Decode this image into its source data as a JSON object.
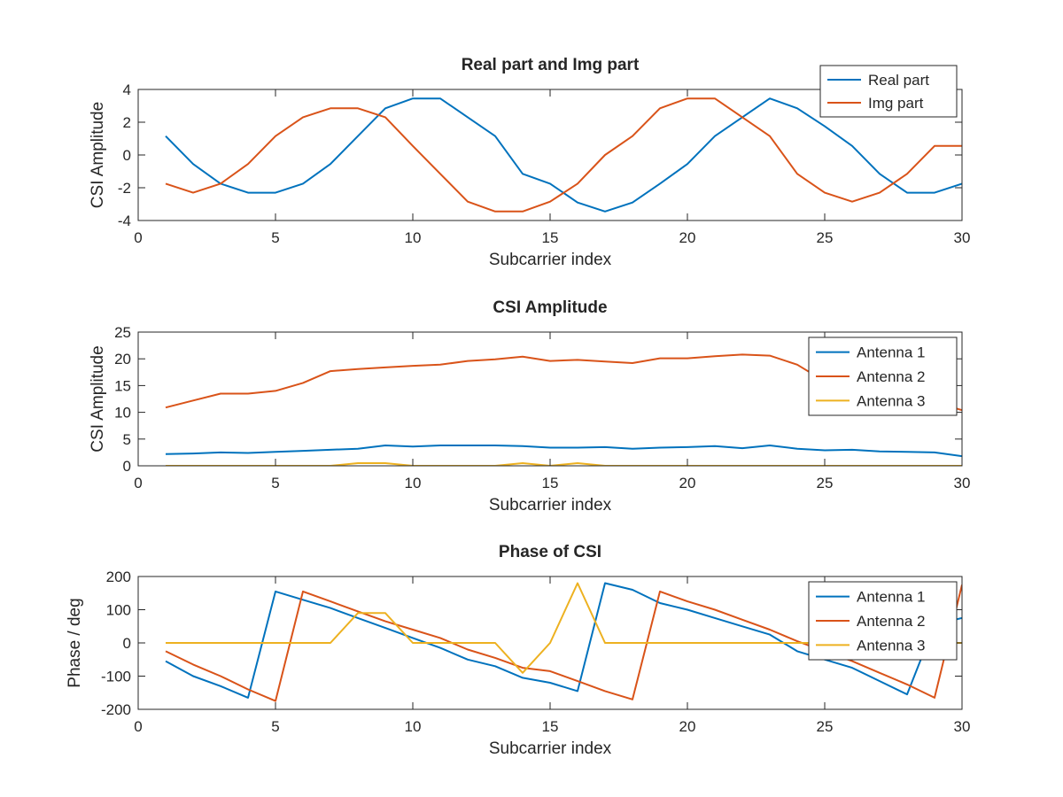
{
  "chart_data": [
    {
      "type": "line",
      "title": "Real part and Img part",
      "xlabel": "Subcarrier index",
      "ylabel": "CSI Amplitude",
      "xlim": [
        0,
        30
      ],
      "ylim": [
        -4,
        4
      ],
      "xticks": [
        0,
        5,
        10,
        15,
        20,
        25,
        30
      ],
      "yticks": [
        -4,
        -2,
        0,
        2,
        4
      ],
      "legend_position": "top-right",
      "x": [
        1,
        2,
        3,
        4,
        5,
        6,
        7,
        8,
        9,
        10,
        11,
        12,
        13,
        14,
        15,
        16,
        17,
        18,
        19,
        20,
        21,
        22,
        23,
        24,
        25,
        26,
        27,
        28,
        29,
        30
      ],
      "series": [
        {
          "name": "Real part",
          "color": "#0072BD",
          "values": [
            1.15,
            -0.55,
            -1.75,
            -2.3,
            -2.3,
            -1.75,
            -0.55,
            1.15,
            2.85,
            3.45,
            3.45,
            2.3,
            1.15,
            -1.15,
            -1.75,
            -2.9,
            -3.45,
            -2.9,
            -1.75,
            -0.55,
            1.15,
            2.3,
            3.45,
            2.85,
            1.75,
            0.55,
            -1.15,
            -2.3,
            -2.3,
            -1.75
          ]
        },
        {
          "name": "Img part",
          "color": "#D95319",
          "values": [
            -1.75,
            -2.3,
            -1.75,
            -0.55,
            1.15,
            2.3,
            2.85,
            2.85,
            2.3,
            0.55,
            -1.15,
            -2.85,
            -3.45,
            -3.45,
            -2.85,
            -1.75,
            0,
            1.15,
            2.85,
            3.45,
            3.45,
            2.3,
            1.15,
            -1.15,
            -2.3,
            -2.85,
            -2.3,
            -1.15,
            0.55,
            0.55
          ]
        }
      ]
    },
    {
      "type": "line",
      "title": "CSI Amplitude",
      "xlabel": "Subcarrier index",
      "ylabel": "CSI Amplitude",
      "xlim": [
        0,
        30
      ],
      "ylim": [
        0,
        25
      ],
      "xticks": [
        0,
        5,
        10,
        15,
        20,
        25,
        30
      ],
      "yticks": [
        0,
        5,
        10,
        15,
        20,
        25
      ],
      "legend_position": "top-right",
      "x": [
        1,
        2,
        3,
        4,
        5,
        6,
        7,
        8,
        9,
        10,
        11,
        12,
        13,
        14,
        15,
        16,
        17,
        18,
        19,
        20,
        21,
        22,
        23,
        24,
        25,
        26,
        27,
        28,
        29,
        30
      ],
      "series": [
        {
          "name": "Antenna 1",
          "color": "#0072BD",
          "values": [
            2.2,
            2.3,
            2.5,
            2.4,
            2.6,
            2.8,
            3.0,
            3.2,
            3.8,
            3.6,
            3.8,
            3.8,
            3.8,
            3.7,
            3.4,
            3.4,
            3.5,
            3.2,
            3.4,
            3.5,
            3.7,
            3.3,
            3.8,
            3.2,
            2.9,
            3.0,
            2.7,
            2.6,
            2.5,
            1.8
          ]
        },
        {
          "name": "Antenna 2",
          "color": "#D95319",
          "values": [
            10.9,
            12.2,
            13.5,
            13.5,
            14.0,
            15.5,
            17.7,
            18.1,
            18.4,
            18.7,
            18.9,
            19.6,
            19.9,
            20.4,
            19.6,
            19.8,
            19.5,
            19.2,
            20.1,
            20.1,
            20.5,
            20.8,
            20.6,
            18.9,
            15.8,
            15.6,
            14.2,
            12.8,
            11.9,
            10.4
          ]
        },
        {
          "name": "Antenna 3",
          "color": "#EDB120",
          "values": [
            0,
            0,
            0,
            0,
            0,
            0,
            0,
            0.5,
            0.5,
            0,
            0,
            0,
            0,
            0.5,
            0,
            0.5,
            0,
            0,
            0,
            0,
            0,
            0,
            0,
            0,
            0,
            0,
            0,
            0,
            0,
            0
          ]
        }
      ]
    },
    {
      "type": "line",
      "title": "Phase of CSI",
      "xlabel": "Subcarrier index",
      "ylabel": "Phase / deg",
      "xlim": [
        0,
        30
      ],
      "ylim": [
        -200,
        200
      ],
      "xticks": [
        0,
        5,
        10,
        15,
        20,
        25,
        30
      ],
      "yticks": [
        -200,
        -100,
        0,
        100,
        200
      ],
      "legend_position": "top-right",
      "x": [
        1,
        2,
        3,
        4,
        5,
        6,
        7,
        8,
        9,
        10,
        11,
        12,
        13,
        14,
        15,
        16,
        17,
        18,
        19,
        20,
        21,
        22,
        23,
        24,
        25,
        26,
        27,
        28,
        29,
        30
      ],
      "series": [
        {
          "name": "Antenna 1",
          "color": "#0072BD",
          "points": [
            [
              1,
              -55
            ],
            [
              2,
              -100
            ],
            [
              3,
              -130
            ],
            [
              4,
              -165
            ],
            [
              5,
              155
            ],
            [
              6,
              130
            ],
            [
              7,
              105
            ],
            [
              8,
              75
            ],
            [
              9,
              45
            ],
            [
              10,
              15
            ],
            [
              11,
              -15
            ],
            [
              12,
              -50
            ],
            [
              13,
              -70
            ],
            [
              14,
              -105
            ],
            [
              15,
              -120
            ],
            [
              16,
              -145
            ],
            [
              17,
              180
            ],
            [
              18,
              160
            ],
            [
              19,
              120
            ],
            [
              20,
              100
            ],
            [
              21,
              75
            ],
            [
              22,
              50
            ],
            [
              23,
              25
            ],
            [
              24,
              -25
            ],
            [
              25,
              -50
            ],
            [
              26,
              -75
            ],
            [
              27,
              -115
            ],
            [
              28,
              -155
            ],
            [
              29,
              55
            ],
            [
              30,
              75
            ]
          ]
        },
        {
          "name": "Antenna 2",
          "color": "#D95319",
          "points": [
            [
              1,
              -25
            ],
            [
              2,
              -65
            ],
            [
              3,
              -100
            ],
            [
              4,
              -140
            ],
            [
              5,
              -175
            ],
            [
              6,
              155
            ],
            [
              7,
              125
            ],
            [
              8,
              95
            ],
            [
              9,
              65
            ],
            [
              10,
              40
            ],
            [
              11,
              15
            ],
            [
              12,
              -20
            ],
            [
              13,
              -45
            ],
            [
              14,
              -75
            ],
            [
              15,
              -85
            ],
            [
              16,
              -115
            ],
            [
              17,
              -145
            ],
            [
              18,
              -170
            ],
            [
              19,
              155
            ],
            [
              20,
              125
            ],
            [
              21,
              100
            ],
            [
              22,
              70
            ],
            [
              23,
              40
            ],
            [
              24,
              5
            ],
            [
              25,
              -25
            ],
            [
              26,
              -55
            ],
            [
              27,
              -90
            ],
            [
              28,
              -125
            ],
            [
              29,
              -165
            ],
            [
              30,
              175
            ]
          ]
        },
        {
          "name": "Antenna 3",
          "color": "#EDB120",
          "points": [
            [
              1,
              0
            ],
            [
              2,
              0
            ],
            [
              3,
              0
            ],
            [
              4,
              0
            ],
            [
              5,
              0
            ],
            [
              6,
              0
            ],
            [
              7,
              0
            ],
            [
              8,
              90
            ],
            [
              9,
              90
            ],
            [
              10,
              0
            ],
            [
              11,
              0
            ],
            [
              12,
              0
            ],
            [
              13,
              0
            ],
            [
              14,
              -90
            ],
            [
              15,
              0
            ],
            [
              16,
              180
            ],
            [
              17,
              0
            ],
            [
              18,
              0
            ],
            [
              19,
              0
            ],
            [
              20,
              0
            ],
            [
              21,
              0
            ],
            [
              22,
              0
            ],
            [
              23,
              0
            ],
            [
              24,
              0
            ],
            [
              25,
              0
            ],
            [
              26,
              0
            ],
            [
              27,
              0
            ],
            [
              28,
              0
            ],
            [
              29,
              0
            ],
            [
              30,
              0
            ]
          ]
        }
      ]
    }
  ]
}
